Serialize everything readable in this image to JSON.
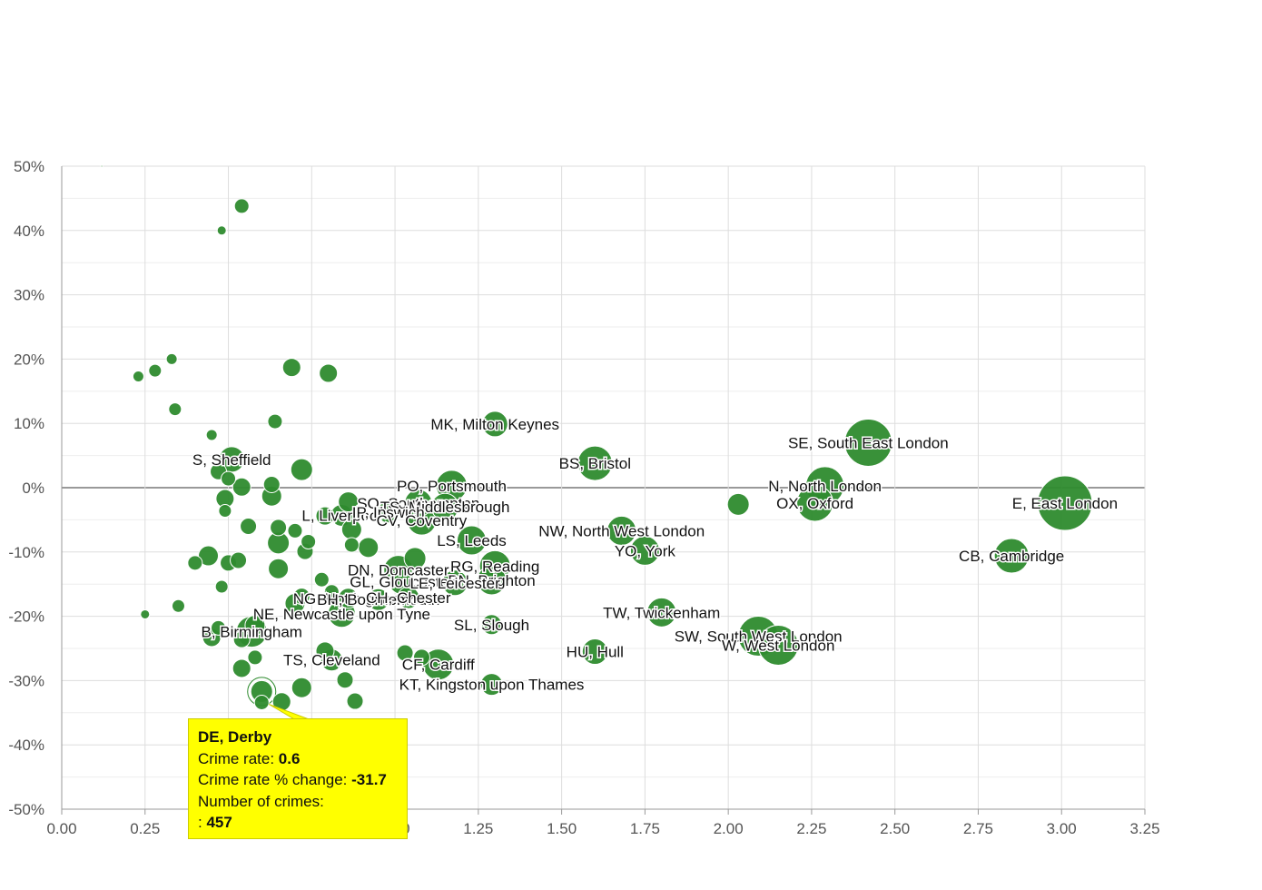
{
  "chart_data": {
    "type": "scatter",
    "title": "",
    "xlabel": "",
    "ylabel": "",
    "xlim": [
      0,
      3.25
    ],
    "ylim": [
      -50,
      50
    ],
    "x_ticks": [
      "0.00",
      "0.25",
      "0.50",
      "0.75",
      "1.00",
      "1.25",
      "1.50",
      "1.75",
      "2.00",
      "2.25",
      "2.50",
      "2.75",
      "3.00",
      "3.25"
    ],
    "y_ticks": [
      "50%",
      "40%",
      "30%",
      "20%",
      "10%",
      "0%",
      "-10%",
      "-20%",
      "-30%",
      "-40%",
      "-50%"
    ],
    "grid": true,
    "bubble_color": "#2e8b2e",
    "points": [
      {
        "x": 0.12,
        "y": 50.0,
        "size": 1,
        "label": ""
      },
      {
        "x": 0.54,
        "y": 43.8,
        "size": 8,
        "label": ""
      },
      {
        "x": 0.48,
        "y": 40.0,
        "size": 5,
        "label": ""
      },
      {
        "x": 0.23,
        "y": 17.3,
        "size": 6,
        "label": ""
      },
      {
        "x": 0.28,
        "y": 18.2,
        "size": 7,
        "label": ""
      },
      {
        "x": 0.33,
        "y": 20.0,
        "size": 6,
        "label": ""
      },
      {
        "x": 0.69,
        "y": 18.7,
        "size": 10,
        "label": ""
      },
      {
        "x": 0.8,
        "y": 17.8,
        "size": 10,
        "label": ""
      },
      {
        "x": 0.34,
        "y": 12.2,
        "size": 7,
        "label": ""
      },
      {
        "x": 0.64,
        "y": 10.3,
        "size": 8,
        "label": ""
      },
      {
        "x": 0.45,
        "y": 8.2,
        "size": 6,
        "label": ""
      },
      {
        "x": 0.51,
        "y": 4.4,
        "size": 14,
        "label": "S, Sheffield"
      },
      {
        "x": 0.47,
        "y": 2.5,
        "size": 9,
        "label": ""
      },
      {
        "x": 0.72,
        "y": 2.8,
        "size": 12,
        "label": ""
      },
      {
        "x": 0.5,
        "y": 1.4,
        "size": 8,
        "label": ""
      },
      {
        "x": 0.54,
        "y": 0.1,
        "size": 10,
        "label": ""
      },
      {
        "x": 0.63,
        "y": 0.5,
        "size": 9,
        "label": ""
      },
      {
        "x": 0.63,
        "y": -1.3,
        "size": 11,
        "label": ""
      },
      {
        "x": 0.49,
        "y": -1.7,
        "size": 10,
        "label": ""
      },
      {
        "x": 0.49,
        "y": -3.6,
        "size": 7,
        "label": ""
      },
      {
        "x": 1.3,
        "y": 9.9,
        "size": 14,
        "label": "MK, Milton Keynes"
      },
      {
        "x": 1.6,
        "y": 3.8,
        "size": 19,
        "label": "BS, Bristol"
      },
      {
        "x": 1.17,
        "y": 0.3,
        "size": 17,
        "label": "PO, Portsmouth"
      },
      {
        "x": 0.86,
        "y": -2.2,
        "size": 11,
        "label": ""
      },
      {
        "x": 1.07,
        "y": -2.4,
        "size": 15,
        "label": "SO, Southampton"
      },
      {
        "x": 1.15,
        "y": -3.0,
        "size": 15,
        "label": "TS, Middlesbrough"
      },
      {
        "x": 0.84,
        "y": -4.3,
        "size": 12,
        "label": "L, Liverpool"
      },
      {
        "x": 0.98,
        "y": -3.8,
        "size": 12,
        "label": "IP, Ipswich"
      },
      {
        "x": 1.08,
        "y": -5.1,
        "size": 16,
        "label": "CV, Coventry"
      },
      {
        "x": 0.79,
        "y": -4.4,
        "size": 10,
        "label": ""
      },
      {
        "x": 0.56,
        "y": -6.0,
        "size": 9,
        "label": ""
      },
      {
        "x": 0.65,
        "y": -6.2,
        "size": 9,
        "label": ""
      },
      {
        "x": 0.7,
        "y": -6.7,
        "size": 8,
        "label": ""
      },
      {
        "x": 0.87,
        "y": -6.5,
        "size": 11,
        "label": ""
      },
      {
        "x": 0.65,
        "y": -8.6,
        "size": 12,
        "label": ""
      },
      {
        "x": 0.74,
        "y": -8.4,
        "size": 8,
        "label": ""
      },
      {
        "x": 0.87,
        "y": -8.9,
        "size": 8,
        "label": ""
      },
      {
        "x": 0.92,
        "y": -9.3,
        "size": 11,
        "label": ""
      },
      {
        "x": 0.73,
        "y": -9.9,
        "size": 9,
        "label": ""
      },
      {
        "x": 1.23,
        "y": -8.2,
        "size": 16,
        "label": "LS, Leeds"
      },
      {
        "x": 1.68,
        "y": -6.7,
        "size": 16,
        "label": "NW, North West London"
      },
      {
        "x": 1.75,
        "y": -9.8,
        "size": 16,
        "label": "YO, York"
      },
      {
        "x": 2.03,
        "y": -2.6,
        "size": 12,
        "label": ""
      },
      {
        "x": 2.42,
        "y": 7.0,
        "size": 26,
        "label": "SE, South East London"
      },
      {
        "x": 2.29,
        "y": 0.3,
        "size": 21,
        "label": "N, North London"
      },
      {
        "x": 2.26,
        "y": -2.4,
        "size": 20,
        "label": "OX, Oxford"
      },
      {
        "x": 3.01,
        "y": -2.4,
        "size": 30,
        "label": "E, East London"
      },
      {
        "x": 2.85,
        "y": -10.6,
        "size": 19,
        "label": "CB, Cambridge"
      },
      {
        "x": 0.44,
        "y": -10.6,
        "size": 11,
        "label": ""
      },
      {
        "x": 0.4,
        "y": -11.7,
        "size": 8,
        "label": ""
      },
      {
        "x": 0.5,
        "y": -11.7,
        "size": 9,
        "label": ""
      },
      {
        "x": 0.53,
        "y": -11.3,
        "size": 9,
        "label": ""
      },
      {
        "x": 0.65,
        "y": -12.6,
        "size": 11,
        "label": ""
      },
      {
        "x": 1.06,
        "y": -11.0,
        "size": 12,
        "label": ""
      },
      {
        "x": 1.01,
        "y": -12.8,
        "size": 16,
        "label": "DN, Doncaster"
      },
      {
        "x": 1.3,
        "y": -12.2,
        "size": 17,
        "label": "RG, Reading"
      },
      {
        "x": 0.78,
        "y": -14.3,
        "size": 8,
        "label": ""
      },
      {
        "x": 1.02,
        "y": -14.6,
        "size": 14,
        "label": "GL, Gloucester"
      },
      {
        "x": 1.29,
        "y": -14.4,
        "size": 16,
        "label": "BN, Brighton"
      },
      {
        "x": 1.18,
        "y": -14.8,
        "size": 14,
        "label": "LE, Leicester"
      },
      {
        "x": 0.48,
        "y": -15.4,
        "size": 7,
        "label": ""
      },
      {
        "x": 0.81,
        "y": -16.2,
        "size": 8,
        "label": ""
      },
      {
        "x": 0.72,
        "y": -16.9,
        "size": 9,
        "label": ""
      },
      {
        "x": 0.86,
        "y": -17.2,
        "size": 11,
        "label": "NG, Nottingham"
      },
      {
        "x": 0.95,
        "y": -17.4,
        "size": 12,
        "label": "BH, Bournemouth"
      },
      {
        "x": 1.04,
        "y": -17.1,
        "size": 12,
        "label": "CH, Chester"
      },
      {
        "x": 0.35,
        "y": -18.4,
        "size": 7,
        "label": ""
      },
      {
        "x": 0.7,
        "y": -18.0,
        "size": 11,
        "label": ""
      },
      {
        "x": 0.84,
        "y": -19.6,
        "size": 15,
        "label": "NE, Newcastle upon Tyne"
      },
      {
        "x": 0.58,
        "y": -21.4,
        "size": 11,
        "label": ""
      },
      {
        "x": 0.25,
        "y": -19.7,
        "size": 5,
        "label": ""
      },
      {
        "x": 0.47,
        "y": -21.8,
        "size": 8,
        "label": ""
      },
      {
        "x": 0.57,
        "y": -22.4,
        "size": 17,
        "label": "B, Birmingham"
      },
      {
        "x": 0.45,
        "y": -23.3,
        "size": 10,
        "label": ""
      },
      {
        "x": 0.54,
        "y": -23.6,
        "size": 9,
        "label": ""
      },
      {
        "x": 1.29,
        "y": -21.3,
        "size": 11,
        "label": "SL, Slough"
      },
      {
        "x": 1.8,
        "y": -19.4,
        "size": 16,
        "label": "TW, Twickenham"
      },
      {
        "x": 2.09,
        "y": -23.1,
        "size": 22,
        "label": "SW, South West London"
      },
      {
        "x": 2.15,
        "y": -24.5,
        "size": 22,
        "label": "W, West London"
      },
      {
        "x": 1.6,
        "y": -25.5,
        "size": 14,
        "label": "HU, Hull"
      },
      {
        "x": 0.79,
        "y": -25.4,
        "size": 10,
        "label": ""
      },
      {
        "x": 0.58,
        "y": -26.4,
        "size": 8,
        "label": ""
      },
      {
        "x": 0.81,
        "y": -26.8,
        "size": 12,
        "label": "TS, Cleveland"
      },
      {
        "x": 1.03,
        "y": -25.7,
        "size": 9,
        "label": ""
      },
      {
        "x": 1.08,
        "y": -26.4,
        "size": 9,
        "label": ""
      },
      {
        "x": 1.13,
        "y": -27.5,
        "size": 17,
        "label": "CF, Cardiff"
      },
      {
        "x": 0.54,
        "y": -28.1,
        "size": 10,
        "label": ""
      },
      {
        "x": 0.85,
        "y": -29.9,
        "size": 9,
        "label": ""
      },
      {
        "x": 1.29,
        "y": -30.6,
        "size": 12,
        "label": "KT, Kingston upon Thames"
      },
      {
        "x": 0.72,
        "y": -31.1,
        "size": 11,
        "label": ""
      },
      {
        "x": 0.6,
        "y": -33.4,
        "size": 8,
        "label": ""
      },
      {
        "x": 0.66,
        "y": -33.3,
        "size": 10,
        "label": ""
      },
      {
        "x": 0.88,
        "y": -33.2,
        "size": 9,
        "label": ""
      },
      {
        "x": 0.6,
        "y": -31.7,
        "size": 12,
        "label": "DE, Derby",
        "highlight": true
      }
    ]
  },
  "tooltip": {
    "title": "DE, Derby",
    "rate_label": "Crime rate: ",
    "rate_value": "0.6",
    "change_label": "Crime rate % change: ",
    "change_value": "-31.7",
    "crimes_label": "Number of crimes:",
    "crimes_prefix": ": ",
    "crimes_value": "457"
  }
}
